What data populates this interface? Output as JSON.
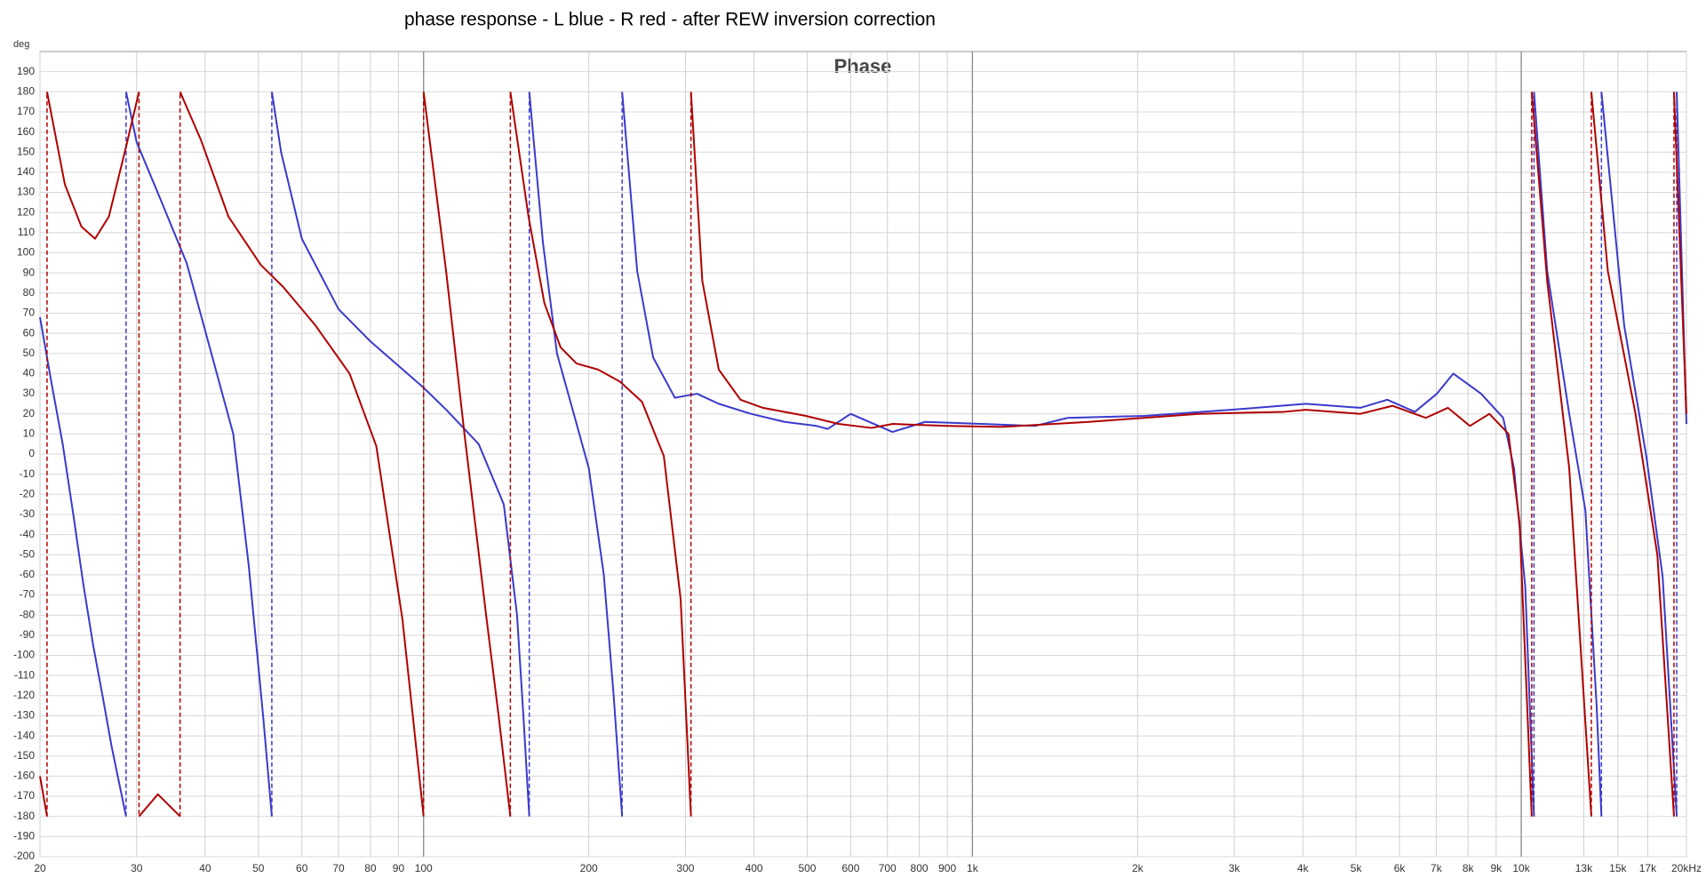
{
  "chart_data": {
    "type": "line",
    "title": "phase response - L blue - R red - after REW inversion correction",
    "plot_title": "Phase",
    "y_label": "deg",
    "xscale": "log",
    "grid": true,
    "xlim": [
      20,
      20000
    ],
    "ylim": [
      -200,
      200
    ],
    "xticks": [
      20,
      30,
      40,
      50,
      60,
      70,
      80,
      90,
      100,
      200,
      300,
      400,
      500,
      600,
      700,
      800,
      900,
      {
        "value": 1000,
        "label": "1k"
      },
      {
        "value": 2000,
        "label": "2k"
      },
      {
        "value": 3000,
        "label": "3k"
      },
      {
        "value": 4000,
        "label": "4k"
      },
      {
        "value": 5000,
        "label": "5k"
      },
      {
        "value": 6000,
        "label": "6k"
      },
      {
        "value": 7000,
        "label": "7k"
      },
      {
        "value": 8000,
        "label": "8k"
      },
      {
        "value": 9000,
        "label": "9k"
      },
      {
        "value": 10000,
        "label": "10k"
      },
      {
        "value": 13000,
        "label": "13k"
      },
      {
        "value": 15000,
        "label": "15k"
      },
      {
        "value": 17000,
        "label": "17k"
      },
      {
        "value": 20000,
        "label": "20kHz"
      }
    ],
    "yticks": [
      -200,
      -190,
      -180,
      -170,
      -160,
      -150,
      -140,
      -130,
      -120,
      -110,
      -100,
      -90,
      -80,
      -70,
      -60,
      -50,
      -40,
      -30,
      -20,
      -10,
      0,
      10,
      20,
      30,
      40,
      50,
      60,
      70,
      80,
      90,
      100,
      110,
      120,
      130,
      140,
      150,
      160,
      170,
      180,
      190
    ],
    "series": [
      {
        "color": "#3a3acc",
        "x": [
          20,
          21,
          22,
          23,
          24,
          25,
          26,
          27,
          28.7,
          null,
          28.7,
          30,
          33,
          37,
          39.3,
          45,
          48,
          51,
          52.9,
          null,
          52.9,
          55,
          60,
          70,
          80,
          100,
          110,
          126,
          140,
          148,
          152,
          155.8,
          null,
          155.8,
          165,
          175,
          190,
          200,
          213,
          222,
          230,
          null,
          230,
          245,
          262,
          287,
          315,
          345,
          395,
          455,
          520,
          545,
          600,
          715,
          820,
          1040,
          1300,
          1490,
          2060,
          2960,
          4050,
          5090,
          5700,
          6400,
          7020,
          7520,
          8450,
          9270,
          9700,
          10170,
          10550,
          null,
          10550,
          11150,
          12230,
          13090,
          13720,
          14000,
          null,
          14000,
          15400,
          16900,
          18100,
          19200,
          null,
          19200,
          20000
        ],
        "values": [
          68,
          35,
          5,
          -30,
          -65,
          -95,
          -120,
          -145,
          -180,
          null,
          180,
          155,
          128,
          95,
          69,
          10,
          -55,
          -130,
          -180,
          null,
          180,
          150,
          107,
          72,
          56,
          33,
          22,
          5,
          -25,
          -80,
          -130,
          -180,
          null,
          180,
          105,
          50,
          15,
          -7,
          -60,
          -120,
          -180,
          null,
          180,
          91,
          48,
          28,
          30,
          25,
          20,
          16,
          14,
          12.5,
          20,
          11,
          16,
          15,
          14,
          18,
          19,
          22,
          25,
          23,
          27,
          21,
          30,
          40,
          30,
          18,
          -7,
          -66,
          -180,
          null,
          180,
          91,
          20,
          -28,
          -125,
          -180,
          null,
          180,
          64,
          -1,
          -61,
          -180,
          null,
          180,
          15
        ]
      },
      {
        "color": "#b00000",
        "x": [
          20,
          20.6,
          null,
          20.6,
          22.2,
          23.8,
          25.2,
          26.7,
          28.6,
          30.3,
          null,
          30.3,
          32.8,
          36,
          null,
          36,
          39.3,
          44.1,
          50.5,
          55.5,
          63.5,
          73.3,
          82,
          91.5,
          100,
          null,
          100,
          110,
          118.7,
          130,
          137,
          143.9,
          null,
          143.9,
          155.3,
          166,
          177.7,
          190,
          208,
          228,
          250,
          274,
          294,
          307,
          null,
          307,
          322,
          345,
          378,
          415,
          497,
          570,
          655,
          716,
          900,
          1130,
          1630,
          2580,
          3690,
          4050,
          5090,
          5830,
          6700,
          7350,
          8060,
          8750,
          9480,
          9930,
          10450,
          null,
          10450,
          11150,
          12230,
          13420,
          null,
          13420,
          14380,
          16150,
          17700,
          18980,
          null,
          18980,
          20000
        ],
        "values": [
          -160,
          -180,
          null,
          180,
          134,
          113,
          107,
          118,
          151,
          180,
          null,
          -180,
          -169,
          -180,
          null,
          180,
          156,
          118,
          94,
          83,
          64,
          40,
          4,
          -82,
          -180,
          null,
          180,
          90,
          10,
          -80,
          -130,
          -180,
          null,
          180,
          118,
          75,
          53,
          45,
          42,
          36,
          26,
          -1,
          -72,
          -180,
          null,
          180,
          86,
          42,
          27,
          23,
          19,
          15,
          13,
          15,
          14,
          13.5,
          16,
          20,
          21,
          22,
          20,
          24,
          18,
          23,
          14,
          20,
          10,
          -34,
          -180,
          null,
          180,
          86,
          -7,
          -180,
          null,
          180,
          91,
          20,
          -50,
          -180,
          null,
          180,
          20
        ]
      }
    ]
  }
}
